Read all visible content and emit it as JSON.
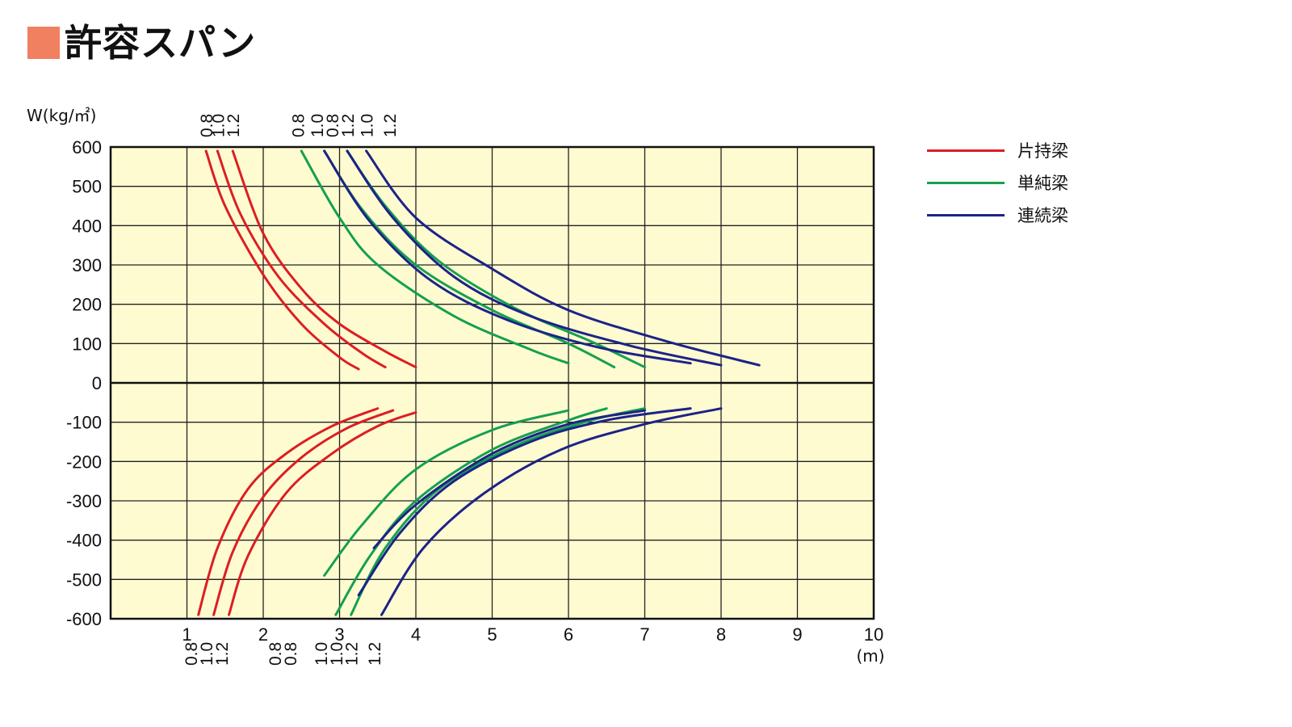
{
  "page": {
    "title": "許容スパン"
  },
  "colors": {
    "title_mark": "#f08060",
    "plot_bg": "#fffbd1",
    "grid": "#222222",
    "cantilever": "#dc1e24",
    "simple": "#14a050",
    "continuous": "#1c2388"
  },
  "legend": {
    "items": [
      {
        "label": "片持梁",
        "color": "#dc1e24"
      },
      {
        "label": "単純梁",
        "color": "#14a050"
      },
      {
        "label": "連続梁",
        "color": "#1c2388"
      }
    ]
  },
  "chart_data": {
    "type": "line",
    "title": "許容スパン",
    "ylabel": "W(kg/㎡)",
    "xlabel": "(m)",
    "xlim": [
      0,
      10
    ],
    "ylim": [
      -600,
      600
    ],
    "x_ticks": [
      "1",
      "2",
      "3",
      "4",
      "5",
      "6",
      "7",
      "8",
      "9",
      "10"
    ],
    "y_ticks": [
      "600",
      "500",
      "400",
      "300",
      "200",
      "100",
      "0",
      "-100",
      "-200",
      "-300",
      "-400",
      "-500",
      "-600"
    ],
    "grid": true,
    "legend_position": "right",
    "top_thickness_labels": [
      {
        "text": "0.8",
        "x": 1.25
      },
      {
        "text": "1.0",
        "x": 1.4
      },
      {
        "text": "1.2",
        "x": 1.6
      },
      {
        "text": "0.8",
        "x": 2.45
      },
      {
        "text": "1.0",
        "x": 2.7
      },
      {
        "text": "0.8",
        "x": 2.9
      },
      {
        "text": "1.2",
        "x": 3.1
      },
      {
        "text": "1.0",
        "x": 3.35
      },
      {
        "text": "1.2",
        "x": 3.65
      }
    ],
    "bottom_thickness_labels": [
      {
        "text": "0.8",
        "x": 1.05
      },
      {
        "text": "1.0",
        "x": 1.25
      },
      {
        "text": "1.2",
        "x": 1.45
      },
      {
        "text": "0.8",
        "x": 2.15
      },
      {
        "text": "0.8",
        "x": 2.35
      },
      {
        "text": "1.0",
        "x": 2.75
      },
      {
        "text": "1.0",
        "x": 2.95
      },
      {
        "text": "1.2",
        "x": 3.15
      },
      {
        "text": "1.2",
        "x": 3.45
      }
    ],
    "series": [
      {
        "name": "片持梁",
        "thickness": "0.8",
        "load": "positive",
        "x": [
          1.25,
          1.5,
          2.0,
          2.5,
          3.0,
          3.25
        ],
        "y": [
          590,
          450,
          275,
          150,
          65,
          35
        ]
      },
      {
        "name": "片持梁",
        "thickness": "1.0",
        "load": "positive",
        "x": [
          1.4,
          1.7,
          2.2,
          2.8,
          3.3,
          3.6
        ],
        "y": [
          590,
          430,
          270,
          150,
          75,
          40
        ]
      },
      {
        "name": "片持梁",
        "thickness": "1.2",
        "load": "positive",
        "x": [
          1.6,
          2.0,
          2.5,
          3.0,
          3.6,
          4.0
        ],
        "y": [
          590,
          380,
          240,
          150,
          80,
          40
        ]
      },
      {
        "name": "片持梁",
        "thickness": "0.8",
        "load": "negative",
        "x": [
          1.15,
          1.4,
          1.8,
          2.3,
          2.9,
          3.5
        ],
        "y": [
          -590,
          -420,
          -270,
          -180,
          -110,
          -65
        ]
      },
      {
        "name": "片持梁",
        "thickness": "1.0",
        "load": "negative",
        "x": [
          1.35,
          1.6,
          2.0,
          2.5,
          3.1,
          3.7
        ],
        "y": [
          -590,
          -430,
          -290,
          -190,
          -115,
          -70
        ]
      },
      {
        "name": "片持梁",
        "thickness": "1.2",
        "load": "negative",
        "x": [
          1.55,
          1.8,
          2.3,
          2.9,
          3.5,
          4.0
        ],
        "y": [
          -590,
          -440,
          -280,
          -180,
          -110,
          -75
        ]
      },
      {
        "name": "単純梁",
        "thickness": "0.8",
        "load": "positive",
        "x": [
          2.5,
          3.0,
          3.5,
          4.5,
          5.5,
          6.0
        ],
        "y": [
          590,
          420,
          300,
          170,
          85,
          50
        ]
      },
      {
        "name": "単純梁",
        "thickness": "1.0",
        "load": "positive",
        "x": [
          2.8,
          3.3,
          4.0,
          5.0,
          6.0,
          6.6
        ],
        "y": [
          590,
          440,
          300,
          185,
          100,
          40
        ]
      },
      {
        "name": "単純梁",
        "thickness": "1.2",
        "load": "positive",
        "x": [
          3.1,
          3.6,
          4.3,
          5.3,
          6.3,
          7.0
        ],
        "y": [
          590,
          450,
          310,
          190,
          105,
          40
        ]
      },
      {
        "name": "単純梁",
        "thickness": "0.8",
        "load": "negative",
        "x": [
          2.8,
          3.3,
          4.0,
          5.0,
          6.0
        ],
        "y": [
          -490,
          -360,
          -220,
          -120,
          -70
        ]
      },
      {
        "name": "単純梁",
        "thickness": "1.0",
        "load": "negative",
        "x": [
          2.95,
          3.4,
          4.0,
          5.0,
          6.0,
          6.5
        ],
        "y": [
          -590,
          -440,
          -300,
          -170,
          -95,
          -65
        ]
      },
      {
        "name": "単純梁",
        "thickness": "1.2",
        "load": "negative",
        "x": [
          3.15,
          3.6,
          4.3,
          5.3,
          6.3,
          7.0
        ],
        "y": [
          -590,
          -420,
          -270,
          -160,
          -95,
          -65
        ]
      },
      {
        "name": "連続梁",
        "thickness": "0.8",
        "load": "positive",
        "x": [
          2.8,
          3.4,
          4.2,
          5.2,
          6.4,
          7.6
        ],
        "y": [
          590,
          410,
          260,
          160,
          90,
          50
        ]
      },
      {
        "name": "連続梁",
        "thickness": "1.0",
        "load": "positive",
        "x": [
          3.1,
          3.7,
          4.5,
          5.5,
          6.8,
          8.0
        ],
        "y": [
          590,
          420,
          270,
          170,
          95,
          45
        ]
      },
      {
        "name": "連続梁",
        "thickness": "1.2",
        "load": "positive",
        "x": [
          3.35,
          4.0,
          5.0,
          6.0,
          7.3,
          8.5
        ],
        "y": [
          590,
          420,
          290,
          185,
          105,
          45
        ]
      },
      {
        "name": "連続梁",
        "thickness": "0.8",
        "load": "negative",
        "x": [
          3.45,
          4.0,
          5.0,
          6.0,
          7.0
        ],
        "y": [
          -420,
          -310,
          -180,
          -105,
          -70
        ]
      },
      {
        "name": "連続梁",
        "thickness": "1.0",
        "load": "negative",
        "x": [
          3.25,
          3.8,
          4.5,
          5.5,
          6.5,
          7.6
        ],
        "y": [
          -540,
          -380,
          -250,
          -150,
          -95,
          -65
        ]
      },
      {
        "name": "連続梁",
        "thickness": "1.2",
        "load": "negative",
        "x": [
          3.55,
          4.1,
          4.9,
          5.9,
          7.0,
          8.0
        ],
        "y": [
          -590,
          -420,
          -280,
          -170,
          -105,
          -65
        ]
      }
    ]
  }
}
